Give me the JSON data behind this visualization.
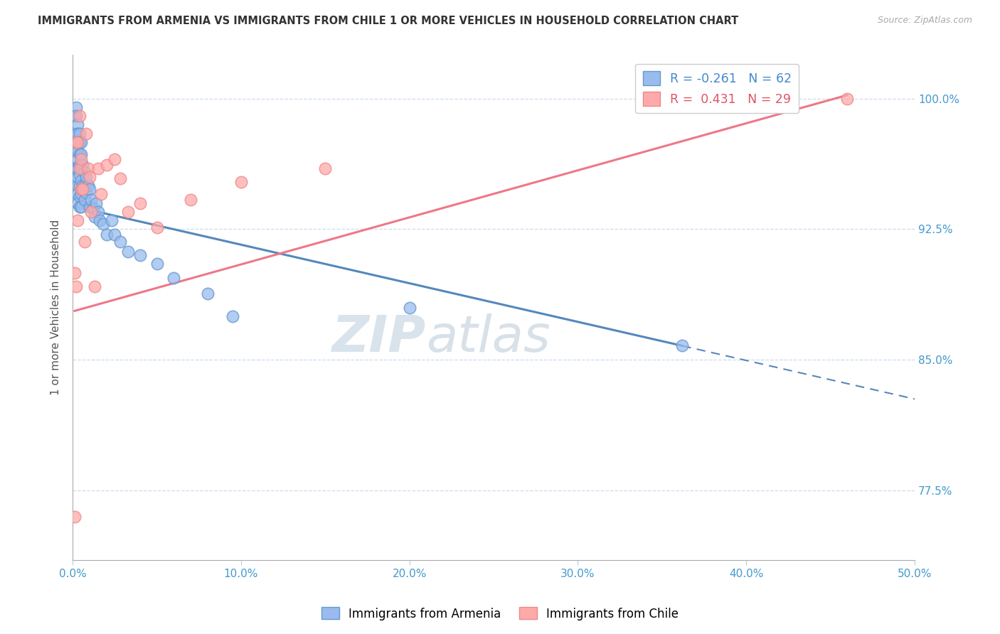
{
  "title": "IMMIGRANTS FROM ARMENIA VS IMMIGRANTS FROM CHILE 1 OR MORE VEHICLES IN HOUSEHOLD CORRELATION CHART",
  "source": "Source: ZipAtlas.com",
  "ylabel": "1 or more Vehicles in Household",
  "xlim": [
    0.0,
    0.5
  ],
  "ylim": [
    0.735,
    1.025
  ],
  "yticks": [
    0.775,
    0.85,
    0.925,
    1.0
  ],
  "ytick_labels": [
    "77.5%",
    "85.0%",
    "92.5%",
    "100.0%"
  ],
  "xticks": [
    0.0,
    0.1,
    0.2,
    0.3,
    0.4,
    0.5
  ],
  "xtick_labels": [
    "0.0%",
    "10.0%",
    "20.0%",
    "30.0%",
    "40.0%",
    "50.0%"
  ],
  "armenia_color": "#99BBEE",
  "chile_color": "#FFAAAA",
  "armenia_edge_color": "#6699CC",
  "chile_edge_color": "#EE8888",
  "armenia_line_color": "#5588BB",
  "chile_line_color": "#EE7788",
  "watermark1": "ZIP",
  "watermark2": "atlas",
  "watermark_color1": "#BBCCDD",
  "watermark_color2": "#BBCCDD",
  "legend_label_armenia": "Immigrants from Armenia",
  "legend_label_chile": "Immigrants from Chile",
  "armenia_R": -0.261,
  "armenia_N": 62,
  "chile_R": 0.431,
  "chile_N": 29,
  "armenia_line_x0": 0.001,
  "armenia_line_y0": 0.938,
  "armenia_line_x1": 0.362,
  "armenia_line_y1": 0.858,
  "armenia_line_solid_end": 0.362,
  "armenia_line_dash_end": 0.5,
  "chile_line_x0": 0.001,
  "chile_line_y0": 0.878,
  "chile_line_x1": 0.46,
  "chile_line_y1": 1.002,
  "armenia_x": [
    0.001,
    0.001,
    0.001,
    0.002,
    0.002,
    0.002,
    0.002,
    0.002,
    0.002,
    0.003,
    0.003,
    0.003,
    0.003,
    0.003,
    0.003,
    0.003,
    0.003,
    0.003,
    0.003,
    0.004,
    0.004,
    0.004,
    0.004,
    0.004,
    0.004,
    0.004,
    0.004,
    0.005,
    0.005,
    0.005,
    0.005,
    0.005,
    0.005,
    0.006,
    0.006,
    0.007,
    0.007,
    0.007,
    0.008,
    0.008,
    0.009,
    0.01,
    0.01,
    0.011,
    0.012,
    0.013,
    0.014,
    0.015,
    0.016,
    0.018,
    0.02,
    0.023,
    0.025,
    0.028,
    0.033,
    0.04,
    0.05,
    0.06,
    0.08,
    0.095,
    0.2,
    0.362
  ],
  "armenia_y": [
    0.99,
    0.975,
    0.96,
    0.995,
    0.99,
    0.98,
    0.975,
    0.97,
    0.96,
    0.985,
    0.98,
    0.975,
    0.97,
    0.965,
    0.96,
    0.955,
    0.95,
    0.945,
    0.94,
    0.98,
    0.975,
    0.968,
    0.962,
    0.956,
    0.95,
    0.944,
    0.938,
    0.975,
    0.968,
    0.96,
    0.953,
    0.945,
    0.938,
    0.962,
    0.95,
    0.958,
    0.95,
    0.942,
    0.955,
    0.946,
    0.95,
    0.948,
    0.938,
    0.942,
    0.937,
    0.932,
    0.94,
    0.935,
    0.93,
    0.928,
    0.922,
    0.93,
    0.922,
    0.918,
    0.912,
    0.91,
    0.905,
    0.897,
    0.888,
    0.875,
    0.88,
    0.858
  ],
  "chile_x": [
    0.001,
    0.001,
    0.002,
    0.002,
    0.003,
    0.003,
    0.004,
    0.004,
    0.005,
    0.005,
    0.006,
    0.007,
    0.008,
    0.009,
    0.01,
    0.011,
    0.013,
    0.015,
    0.017,
    0.02,
    0.025,
    0.028,
    0.033,
    0.04,
    0.05,
    0.07,
    0.1,
    0.15,
    0.46
  ],
  "chile_y": [
    0.76,
    0.9,
    0.892,
    0.975,
    0.975,
    0.93,
    0.99,
    0.96,
    0.965,
    0.948,
    0.948,
    0.918,
    0.98,
    0.96,
    0.955,
    0.935,
    0.892,
    0.96,
    0.945,
    0.962,
    0.965,
    0.954,
    0.935,
    0.94,
    0.926,
    0.942,
    0.952,
    0.96,
    1.0
  ]
}
